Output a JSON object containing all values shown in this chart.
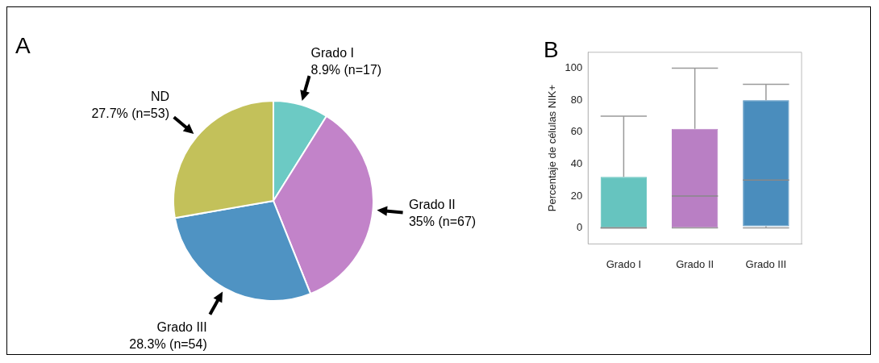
{
  "chart_data": [
    {
      "type": "pie",
      "title": "A",
      "categories": [
        "Grado I",
        "Grado II",
        "Grado III",
        "ND"
      ],
      "values": [
        8.9,
        35,
        28.3,
        27.7
      ],
      "colors": [
        "#6ccac4",
        "#c283c9",
        "#4f93c3",
        "#c3c15a"
      ],
      "value_labels": [
        "8.9% (n=17)",
        "35% (n=67)",
        "28.3% (n=54)",
        "27.7% (n=53)"
      ]
    },
    {
      "type": "box",
      "title": "B",
      "categories": [
        "Grado I",
        "Grado II",
        "Grado III"
      ],
      "ylabel": "Percentaje de células NIK+",
      "ylim": [
        -10,
        110
      ],
      "yticks": [
        0,
        20,
        40,
        60,
        80,
        100
      ],
      "colors": [
        "#66c4bf",
        "#b97fc4",
        "#4a8dbd"
      ],
      "boxes": [
        {
          "low": 0,
          "q1": 0,
          "median": 0,
          "q3": 32,
          "high": 70
        },
        {
          "low": 0,
          "q1": 0,
          "median": 20,
          "q3": 62,
          "high": 100
        },
        {
          "low": 0,
          "q1": 1,
          "median": 30,
          "q3": 80,
          "high": 90
        }
      ]
    }
  ]
}
